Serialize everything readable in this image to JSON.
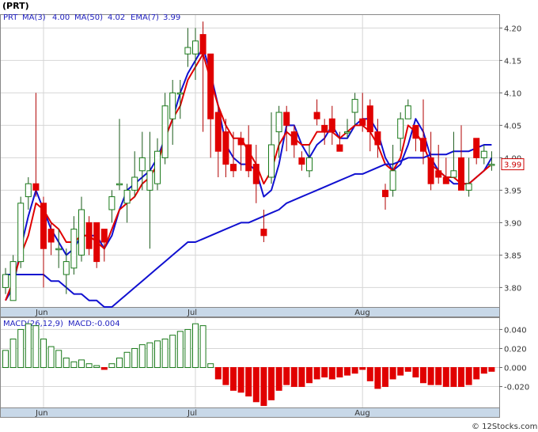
{
  "header": {
    "symbol": "(PRT)"
  },
  "price_legend": {
    "ticker": "PRT",
    "ma3": "MA(3)",
    "ma3_value": "4.00",
    "ma50": "MA(50)",
    "ma50_value": "4.02",
    "ema7": "EMA(7)",
    "ema7_value": "3.99"
  },
  "macd_legend": {
    "params": "MACD(26,12,9)",
    "value": "MACD:-0.004"
  },
  "credit": "© 12Stocks.com",
  "colors": {
    "up_candle": "#1a7a1a",
    "down_candle": "#e00000",
    "ma3": "#1010d0",
    "ema7": "#e00000",
    "ma50": "#1010d0",
    "axis_band": "#c8d8e8",
    "last_price_box": "#cc0000"
  },
  "chart_data": [
    {
      "type": "candlestick",
      "name": "price",
      "y_ticks": [
        "4.20",
        "4.15",
        "4.10",
        "4.05",
        "4.00",
        "3.95",
        "3.90",
        "3.85",
        "3.80"
      ],
      "ylim": [
        3.77,
        4.22
      ],
      "x_labels": [
        {
          "label": "Jun",
          "index": 5
        },
        {
          "label": "Jul",
          "index": 25
        },
        {
          "label": "Aug",
          "index": 47
        }
      ],
      "last_price": "3.99",
      "candles": [
        [
          3.8,
          3.82,
          3.83,
          3.79
        ],
        [
          3.78,
          3.84,
          3.85,
          3.78
        ],
        [
          3.84,
          3.93,
          3.94,
          3.83
        ],
        [
          3.94,
          3.96,
          3.97,
          3.92
        ],
        [
          3.96,
          3.95,
          4.1,
          3.94
        ],
        [
          3.93,
          3.86,
          3.94,
          3.8
        ],
        [
          3.89,
          3.87,
          3.9,
          3.85
        ],
        [
          3.86,
          3.86,
          3.89,
          3.83
        ],
        [
          3.82,
          3.84,
          3.86,
          3.79
        ],
        [
          3.83,
          3.89,
          3.91,
          3.82
        ],
        [
          3.85,
          3.92,
          3.94,
          3.84
        ],
        [
          3.9,
          3.86,
          3.91,
          3.85
        ],
        [
          3.9,
          3.84,
          3.9,
          3.83
        ],
        [
          3.89,
          3.87,
          3.89,
          3.84
        ],
        [
          3.92,
          3.94,
          3.95,
          3.9
        ],
        [
          3.96,
          3.96,
          4.06,
          3.95
        ],
        [
          3.93,
          3.95,
          3.96,
          3.9
        ],
        [
          3.95,
          3.97,
          4.01,
          3.94
        ],
        [
          3.98,
          4.0,
          4.04,
          3.95
        ],
        [
          3.95,
          3.98,
          4.04,
          3.86
        ],
        [
          3.96,
          4.01,
          4.03,
          3.95
        ],
        [
          4.0,
          4.08,
          4.1,
          3.99
        ],
        [
          4.06,
          4.1,
          4.12,
          4.02
        ],
        [
          4.1,
          4.1,
          4.12,
          4.06
        ],
        [
          4.16,
          4.17,
          4.2,
          4.14
        ],
        [
          4.16,
          4.18,
          4.2,
          4.12
        ],
        [
          4.19,
          4.16,
          4.21,
          4.04
        ],
        [
          4.16,
          4.06,
          4.16,
          4.0
        ],
        [
          4.07,
          4.01,
          4.08,
          3.97
        ],
        [
          4.04,
          3.99,
          4.06,
          3.97
        ],
        [
          3.99,
          3.98,
          4.04,
          3.97
        ],
        [
          4.03,
          4.02,
          4.04,
          3.98
        ],
        [
          4.02,
          3.98,
          4.05,
          3.97
        ],
        [
          3.99,
          3.96,
          4.02,
          3.93
        ],
        [
          3.89,
          3.88,
          3.92,
          3.87
        ],
        [
          3.97,
          4.02,
          4.07,
          3.96
        ],
        [
          4.04,
          4.07,
          4.08,
          4.0
        ],
        [
          4.07,
          4.05,
          4.08,
          4.01
        ],
        [
          4.04,
          4.02,
          4.05,
          4.0
        ],
        [
          4.0,
          3.99,
          4.01,
          3.98
        ],
        [
          3.98,
          4.0,
          4.02,
          3.97
        ],
        [
          4.07,
          4.06,
          4.09,
          4.05
        ],
        [
          4.05,
          4.04,
          4.06,
          4.02
        ],
        [
          4.06,
          4.04,
          4.08,
          4.02
        ],
        [
          4.02,
          4.01,
          4.04,
          4.01
        ],
        [
          4.04,
          4.04,
          4.06,
          4.03
        ],
        [
          4.07,
          4.09,
          4.1,
          4.05
        ],
        [
          4.06,
          4.05,
          4.1,
          4.04
        ],
        [
          4.08,
          4.04,
          4.09,
          4.01
        ],
        [
          4.04,
          4.02,
          4.06,
          4.0
        ],
        [
          3.95,
          3.94,
          3.96,
          3.92
        ],
        [
          3.95,
          3.98,
          4.02,
          3.94
        ],
        [
          4.03,
          4.06,
          4.07,
          4.01
        ],
        [
          4.06,
          4.08,
          4.09,
          4.06
        ],
        [
          4.05,
          4.03,
          4.05,
          4.01
        ],
        [
          4.03,
          4.01,
          4.09,
          3.99
        ],
        [
          4.0,
          3.96,
          4.04,
          3.95
        ],
        [
          3.98,
          3.97,
          4.02,
          3.96
        ],
        [
          3.97,
          3.96,
          4.0,
          3.96
        ],
        [
          3.97,
          3.98,
          4.04,
          3.97
        ],
        [
          4.0,
          3.95,
          4.05,
          3.95
        ],
        [
          3.95,
          3.96,
          4.0,
          3.94
        ],
        [
          4.03,
          4.0,
          4.03,
          3.99
        ],
        [
          4.0,
          4.01,
          4.02,
          3.99
        ],
        [
          3.99,
          3.99,
          4.01,
          3.98
        ]
      ],
      "series": [
        {
          "name": "MA(3)",
          "values": [
            3.78,
            3.8,
            3.86,
            3.91,
            3.95,
            3.92,
            3.89,
            3.87,
            3.85,
            3.86,
            3.88,
            3.88,
            3.88,
            3.86,
            3.88,
            3.92,
            3.95,
            3.96,
            3.97,
            3.98,
            4.0,
            4.03,
            4.06,
            4.1,
            4.13,
            4.15,
            4.17,
            4.13,
            4.08,
            4.02,
            4.0,
            3.99,
            3.99,
            3.98,
            3.94,
            3.95,
            3.99,
            4.05,
            4.05,
            4.02,
            4.0,
            4.02,
            4.03,
            4.05,
            4.03,
            4.03,
            4.05,
            4.06,
            4.06,
            4.04,
            4.0,
            3.98,
            3.99,
            4.02,
            4.06,
            4.04,
            4.0,
            3.98,
            3.97,
            3.96,
            3.96,
            3.96,
            3.97,
            3.98,
            4.0
          ]
        },
        {
          "name": "EMA(7)",
          "values": [
            3.78,
            3.81,
            3.85,
            3.88,
            3.93,
            3.92,
            3.9,
            3.89,
            3.87,
            3.87,
            3.88,
            3.88,
            3.87,
            3.86,
            3.89,
            3.92,
            3.93,
            3.94,
            3.96,
            3.97,
            3.99,
            4.03,
            4.06,
            4.08,
            4.12,
            4.14,
            4.16,
            4.12,
            4.08,
            4.05,
            4.03,
            4.03,
            4.01,
            3.99,
            3.96,
            3.98,
            4.02,
            4.04,
            4.03,
            4.02,
            4.02,
            4.04,
            4.04,
            4.04,
            4.03,
            4.04,
            4.05,
            4.05,
            4.04,
            4.02,
            3.99,
            3.98,
            4.0,
            4.05,
            4.04,
            4.02,
            3.99,
            3.98,
            3.97,
            3.97,
            3.96,
            3.96,
            3.97,
            3.98,
            3.99
          ]
        },
        {
          "name": "MA(50)",
          "values": [
            3.82,
            3.82,
            3.82,
            3.82,
            3.82,
            3.82,
            3.81,
            3.81,
            3.8,
            3.79,
            3.79,
            3.78,
            3.78,
            3.77,
            3.77,
            3.78,
            3.79,
            3.8,
            3.81,
            3.82,
            3.83,
            3.84,
            3.85,
            3.86,
            3.87,
            3.87,
            3.875,
            3.88,
            3.885,
            3.89,
            3.895,
            3.9,
            3.9,
            3.905,
            3.91,
            3.915,
            3.92,
            3.93,
            3.935,
            3.94,
            3.945,
            3.95,
            3.955,
            3.96,
            3.965,
            3.97,
            3.975,
            3.975,
            3.98,
            3.985,
            3.99,
            3.99,
            3.995,
            4.0,
            4.0,
            4.0,
            4.005,
            4.005,
            4.005,
            4.01,
            4.01,
            4.01,
            4.015,
            4.02,
            4.02
          ]
        }
      ]
    },
    {
      "type": "bar",
      "name": "MACD histogram",
      "y_ticks": [
        "0.040",
        "0.020",
        "0.000",
        "-0.020"
      ],
      "ylim": [
        -0.042,
        0.052
      ],
      "x_labels": [
        {
          "label": "Jun",
          "index": 5
        },
        {
          "label": "Jul",
          "index": 25
        },
        {
          "label": "Aug",
          "index": 47
        }
      ],
      "values": [
        0.018,
        0.03,
        0.04,
        0.046,
        0.044,
        0.03,
        0.022,
        0.018,
        0.01,
        0.006,
        0.008,
        0.004,
        0.002,
        -0.002,
        0.004,
        0.01,
        0.016,
        0.02,
        0.024,
        0.026,
        0.028,
        0.03,
        0.034,
        0.038,
        0.04,
        0.046,
        0.044,
        0.004,
        -0.012,
        -0.018,
        -0.024,
        -0.026,
        -0.03,
        -0.036,
        -0.04,
        -0.034,
        -0.024,
        -0.018,
        -0.02,
        -0.02,
        -0.016,
        -0.012,
        -0.01,
        -0.012,
        -0.01,
        -0.008,
        -0.006,
        -0.002,
        -0.014,
        -0.022,
        -0.02,
        -0.012,
        -0.008,
        -0.004,
        -0.01,
        -0.016,
        -0.018,
        -0.018,
        -0.02,
        -0.02,
        -0.02,
        -0.018,
        -0.012,
        -0.006,
        -0.004
      ]
    }
  ]
}
